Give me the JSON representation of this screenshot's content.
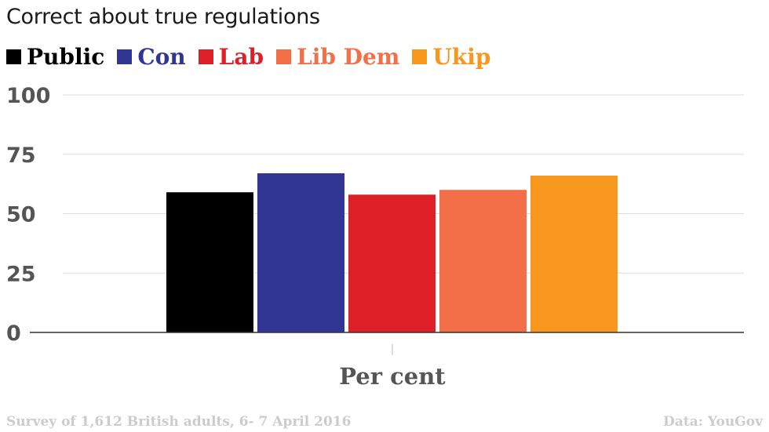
{
  "chart_data": {
    "type": "bar",
    "title": "Correct about true regulations",
    "categories": [
      "Per cent"
    ],
    "xlabel": "Per cent",
    "ylabel": "",
    "ylim": [
      0,
      100
    ],
    "yticks": [
      0,
      25,
      50,
      75,
      100
    ],
    "grid": true,
    "legend_position": "top-left",
    "series": [
      {
        "name": "Public",
        "values": [
          59
        ],
        "color": "#000000"
      },
      {
        "name": "Con",
        "values": [
          67
        ],
        "color": "#313594"
      },
      {
        "name": "Lab",
        "values": [
          58
        ],
        "color": "#dd2028"
      },
      {
        "name": "Lib Dem",
        "values": [
          60
        ],
        "color": "#f36f47"
      },
      {
        "name": "Ukip",
        "values": [
          66
        ],
        "color": "#f7971e"
      }
    ]
  },
  "footer": {
    "source_note": "Survey of 1,612 British adults, 6- 7 April 2016",
    "credit": "Data: YouGov"
  }
}
